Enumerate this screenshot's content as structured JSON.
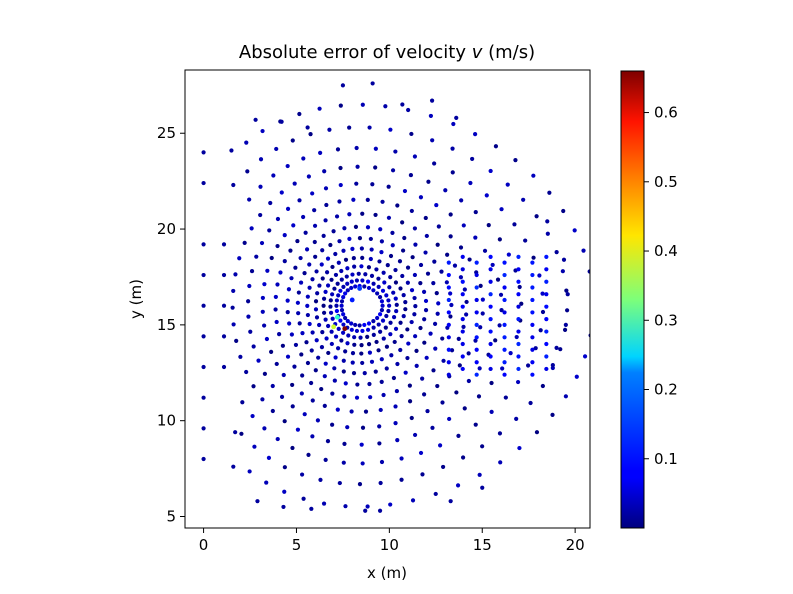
{
  "chart_data": {
    "type": "scatter",
    "title": "Absolute error of velocity v (m/s)",
    "title_parts": {
      "prefix": "Absolute error of velocity ",
      "var": "v",
      "suffix": " (m/s)"
    },
    "xlabel": "x (m)",
    "ylabel": "y (m)",
    "xlim": [
      -1,
      20.8
    ],
    "ylim": [
      4.4,
      28.3
    ],
    "xticks": [
      0,
      5,
      10,
      15,
      20
    ],
    "yticks": [
      5,
      10,
      15,
      20,
      25
    ],
    "colorbar": {
      "colormap": "jet",
      "range": [
        0.0,
        0.66
      ],
      "ticks": [
        0.1,
        0.2,
        0.3,
        0.4,
        0.5,
        0.6
      ]
    },
    "grid": false,
    "points": {
      "description_note_omitted": true,
      "outer_scatter": [
        [
          0,
          24.0
        ],
        [
          0,
          22.4
        ],
        [
          0,
          19.2
        ],
        [
          0,
          17.6
        ],
        [
          0,
          16.0
        ],
        [
          0,
          14.4
        ],
        [
          0,
          12.8
        ],
        [
          0,
          11.2
        ],
        [
          0,
          9.6
        ],
        [
          0,
          8.0
        ],
        [
          1.5,
          24.1
        ],
        [
          1.6,
          22.3
        ],
        [
          1.1,
          19.2
        ],
        [
          1.1,
          17.6
        ],
        [
          1.1,
          16.0
        ],
        [
          1.1,
          14.4
        ],
        [
          1.1,
          12.8
        ],
        [
          1.7,
          9.4
        ],
        [
          1.6,
          7.6
        ],
        [
          2.8,
          25.7
        ],
        [
          4.2,
          25.6
        ],
        [
          5.6,
          25.3
        ],
        [
          7.5,
          27.5
        ],
        [
          9.1,
          27.6
        ],
        [
          10.7,
          26.5
        ],
        [
          12.3,
          26.7
        ],
        [
          13.6,
          25.8
        ],
        [
          2.9,
          5.8
        ],
        [
          4.3,
          5.5
        ],
        [
          5.8,
          5.4
        ],
        [
          8.7,
          5.3
        ],
        [
          9.5,
          5.3
        ],
        [
          13.3,
          5.8
        ],
        [
          15.0,
          6.5
        ],
        [
          19.6,
          16.6
        ],
        [
          19.5,
          15.0
        ],
        [
          19.4,
          18.4
        ],
        [
          18.8,
          12.9
        ],
        [
          19.0,
          13.8
        ],
        [
          18.5,
          20.4
        ]
      ],
      "highlight": [
        {
          "x": 7.6,
          "y": 14.8,
          "v": 0.66
        },
        {
          "x": 7.0,
          "y": 14.9,
          "v": 0.38
        },
        {
          "x": 7.2,
          "y": 15.4,
          "v": 0.28
        },
        {
          "x": 8.4,
          "y": 16.9,
          "v": 0.12
        },
        {
          "x": 8.0,
          "y": 16.3,
          "v": 0.1
        }
      ]
    }
  }
}
